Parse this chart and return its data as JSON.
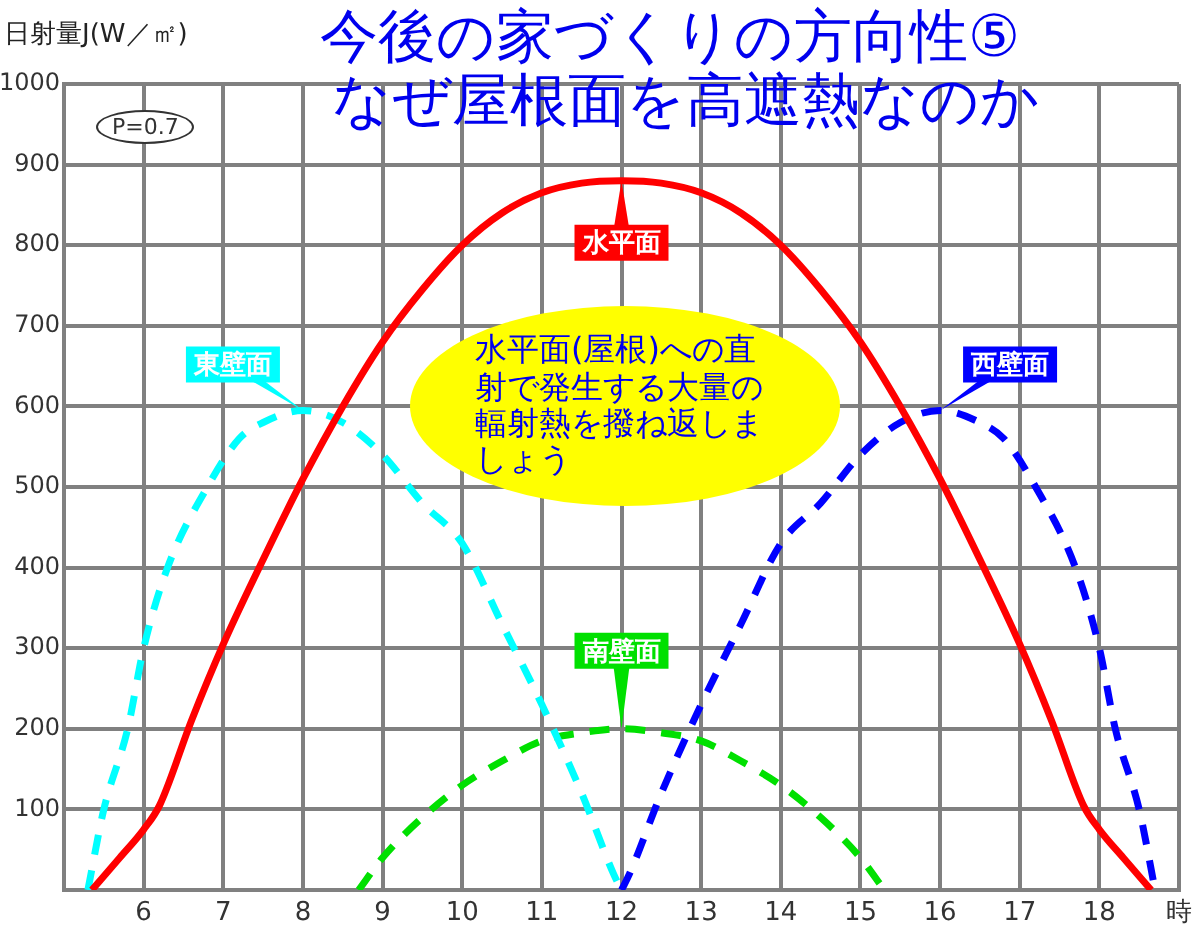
{
  "chart_data": {
    "type": "line",
    "title": "今後の家づくりの方向性⑤",
    "subtitle": "なぜ屋根面を高遮熱なのか",
    "ylabel": "日射量J(W／㎡)",
    "annotations": [
      "P=0.7",
      "水平面(屋根)への直射で発生する大量の輻射熱を撥ね返しましょう"
    ],
    "xlim": [
      5,
      19
    ],
    "xticks": [
      6,
      7,
      8,
      9,
      10,
      11,
      12,
      13,
      14,
      15,
      16,
      17,
      18,
      {
        "value": 19,
        "label": "時"
      }
    ],
    "ylim": [
      0,
      1000
    ],
    "yticks": [
      {
        "value": 0,
        "label": null
      },
      100,
      200,
      300,
      400,
      500,
      600,
      700,
      800,
      900,
      1000
    ],
    "grid": true,
    "legend": false,
    "marker": "none",
    "series": [
      {
        "name": "水平面",
        "color": "#ff0000",
        "line_style": "solid",
        "x": [
          5.35,
          5.7,
          6,
          6.2,
          6.6,
          7,
          7.5,
          8,
          8.5,
          9,
          9.5,
          10,
          10.5,
          11,
          11.5,
          12,
          12.5,
          13,
          13.5,
          14,
          14.5,
          15,
          15.5,
          16,
          16.5,
          17,
          17.4,
          17.8,
          18,
          18.3,
          18.65
        ],
        "values": [
          0,
          40,
          75,
          105,
          210,
          305,
          410,
          510,
          600,
          680,
          745,
          800,
          840,
          865,
          877,
          880,
          877,
          865,
          840,
          800,
          745,
          680,
          600,
          510,
          410,
          305,
          210,
          105,
          75,
          40,
          0
        ]
      },
      {
        "name": "東壁面",
        "color": "#00ffff",
        "line_style": "dashed",
        "x": [
          5.3,
          5.5,
          5.8,
          6,
          6.3,
          6.8,
          7.2,
          7.5,
          8,
          8.5,
          9,
          9.5,
          10,
          10.5,
          11,
          11.5,
          11.9,
          12
        ],
        "values": [
          0,
          100,
          200,
          300,
          400,
          500,
          560,
          580,
          595,
          580,
          540,
          480,
          430,
          330,
          230,
          120,
          20,
          0
        ]
      },
      {
        "name": "西壁面",
        "color": "#0000ff",
        "line_style": "dashed",
        "x": [
          12,
          12.1,
          12.5,
          13,
          13.5,
          14,
          14.5,
          15,
          15.5,
          16,
          16.5,
          16.8,
          17.2,
          17.7,
          18,
          18.2,
          18.5,
          18.7
        ],
        "values": [
          0,
          20,
          120,
          230,
          330,
          430,
          480,
          540,
          580,
          595,
          580,
          560,
          500,
          400,
          300,
          200,
          100,
          0
        ]
      },
      {
        "name": "南壁面",
        "color": "#00e000",
        "line_style": "dashed",
        "x": [
          8.7,
          9,
          9.5,
          10,
          10.5,
          11,
          11.5,
          12,
          12.5,
          13,
          13.5,
          14,
          14.5,
          15,
          15.3
        ],
        "values": [
          0,
          40,
          90,
          130,
          160,
          185,
          195,
          200,
          195,
          185,
          160,
          130,
          90,
          40,
          0
        ]
      }
    ]
  }
}
